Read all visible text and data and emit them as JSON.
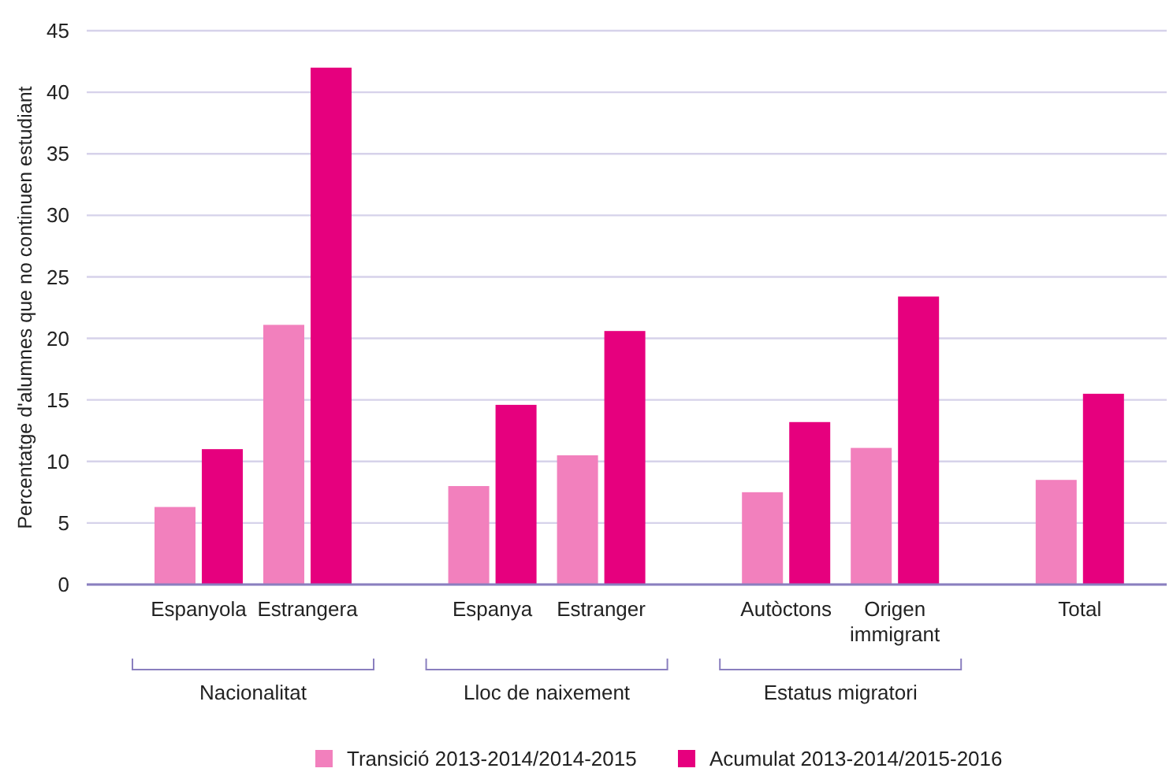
{
  "chart_data": {
    "type": "bar",
    "ylabel": "Percentatge d'alumnes que no continuen estudiant",
    "categories": [
      "Espanyola",
      "Estrangera",
      null,
      "Espanya",
      "Estranger",
      null,
      "Autòctons",
      "Origen immigrant",
      null,
      "Total"
    ],
    "series": [
      {
        "name": "Transició 2013-2014/2014-2015",
        "color": "#f280bd",
        "values": [
          6.3,
          21.1,
          null,
          8.0,
          10.5,
          null,
          7.5,
          11.1,
          null,
          8.5
        ]
      },
      {
        "name": "Acumulat 2013-2014/2015-2016",
        "color": "#e6007e",
        "values": [
          11.0,
          42.0,
          null,
          14.6,
          20.6,
          null,
          13.2,
          23.4,
          null,
          15.5
        ]
      }
    ],
    "annotations": [
      "Nacionalitat",
      "Lloc de naixement",
      "Estatus migratori"
    ],
    "ylim": [
      0,
      45
    ],
    "yticks": [
      0,
      5,
      10,
      15,
      20,
      25,
      30,
      35,
      40,
      45
    ],
    "grid": "y",
    "legend": "bottom"
  }
}
